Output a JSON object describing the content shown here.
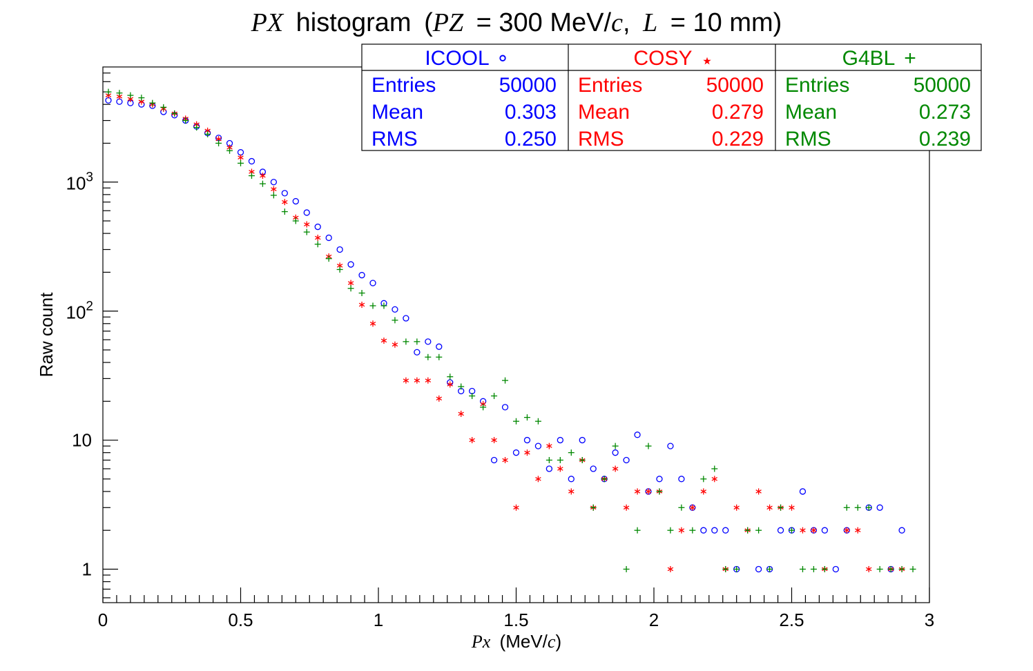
{
  "chart_data": {
    "type": "scatter",
    "title": {
      "var": "PX",
      "word": "histogram",
      "open": "(",
      "pz_var": "PZ",
      "pz_value": "= 300 MeV/",
      "c": "c",
      "comma": ",",
      "l_var": "L",
      "l_value": "= 10 mm)"
    },
    "xlabel": {
      "var": "Px",
      "unit_open": "(MeV/",
      "c": "c",
      "unit_close": ")"
    },
    "ylabel": "Raw count",
    "xlim": [
      0,
      3
    ],
    "ylim": [
      0.55,
      7800
    ],
    "y_scale": "log",
    "x_ticks": [
      {
        "v": 0,
        "label": "0"
      },
      {
        "v": 0.5,
        "label": "0.5"
      },
      {
        "v": 1,
        "label": "1"
      },
      {
        "v": 1.5,
        "label": "1.5"
      },
      {
        "v": 2,
        "label": "2"
      },
      {
        "v": 2.5,
        "label": "2.5"
      },
      {
        "v": 3,
        "label": "3"
      }
    ],
    "y_ticks": [
      {
        "v": 1,
        "label": "1"
      },
      {
        "v": 10,
        "label": "10"
      },
      {
        "v": 100,
        "base": "10",
        "exp": "2"
      },
      {
        "v": 1000,
        "base": "10",
        "exp": "3"
      }
    ],
    "series": [
      {
        "name": "ICOOL",
        "marker": "circle",
        "marker_glyph": "∘",
        "color": "#0000ff",
        "stats": {
          "entries": "50000",
          "mean": "0.303",
          "rms": "0.250"
        },
        "points": [
          [
            0.02,
            4300
          ],
          [
            0.06,
            4200
          ],
          [
            0.1,
            4100
          ],
          [
            0.14,
            4000
          ],
          [
            0.18,
            3900
          ],
          [
            0.22,
            3500
          ],
          [
            0.26,
            3300
          ],
          [
            0.3,
            3000
          ],
          [
            0.34,
            2700
          ],
          [
            0.38,
            2400
          ],
          [
            0.42,
            2200
          ],
          [
            0.46,
            2000
          ],
          [
            0.5,
            1700
          ],
          [
            0.54,
            1450
          ],
          [
            0.58,
            1200
          ],
          [
            0.62,
            1000
          ],
          [
            0.66,
            820
          ],
          [
            0.7,
            710
          ],
          [
            0.74,
            580
          ],
          [
            0.78,
            450
          ],
          [
            0.82,
            370
          ],
          [
            0.86,
            300
          ],
          [
            0.9,
            230
          ],
          [
            0.94,
            190
          ],
          [
            0.98,
            165
          ],
          [
            1.02,
            115
          ],
          [
            1.06,
            103
          ],
          [
            1.1,
            88
          ],
          [
            1.14,
            48
          ],
          [
            1.18,
            58
          ],
          [
            1.22,
            53
          ],
          [
            1.26,
            28
          ],
          [
            1.3,
            24
          ],
          [
            1.34,
            24
          ],
          [
            1.38,
            20
          ],
          [
            1.42,
            7
          ],
          [
            1.46,
            18
          ],
          [
            1.5,
            8
          ],
          [
            1.54,
            10
          ],
          [
            1.58,
            9
          ],
          [
            1.62,
            6
          ],
          [
            1.66,
            10
          ],
          [
            1.7,
            5
          ],
          [
            1.74,
            10
          ],
          [
            1.78,
            6
          ],
          [
            1.82,
            5
          ],
          [
            1.86,
            8
          ],
          [
            1.9,
            7
          ],
          [
            1.94,
            11
          ],
          [
            1.98,
            4
          ],
          [
            2.02,
            5
          ],
          [
            2.06,
            9
          ],
          [
            2.1,
            5
          ],
          [
            2.14,
            3
          ],
          [
            2.18,
            2
          ],
          [
            2.22,
            2
          ],
          [
            2.26,
            2
          ],
          [
            2.3,
            1
          ],
          [
            2.38,
            1
          ],
          [
            2.42,
            1
          ],
          [
            2.46,
            2
          ],
          [
            2.5,
            2
          ],
          [
            2.54,
            4
          ],
          [
            2.58,
            2
          ],
          [
            2.62,
            2
          ],
          [
            2.66,
            1
          ],
          [
            2.7,
            2
          ],
          [
            2.78,
            3
          ],
          [
            2.82,
            3
          ],
          [
            2.86,
            1
          ],
          [
            2.9,
            2
          ]
        ]
      },
      {
        "name": "COSY",
        "marker": "star",
        "marker_glyph": "⋆",
        "color": "#ff0000",
        "stats": {
          "entries": "50000",
          "mean": "0.279",
          "rms": "0.229"
        },
        "points": [
          [
            0.02,
            4700
          ],
          [
            0.06,
            4600
          ],
          [
            0.1,
            4400
          ],
          [
            0.14,
            4200
          ],
          [
            0.18,
            4000
          ],
          [
            0.22,
            3700
          ],
          [
            0.26,
            3400
          ],
          [
            0.3,
            3100
          ],
          [
            0.34,
            2800
          ],
          [
            0.38,
            2500
          ],
          [
            0.42,
            2150
          ],
          [
            0.46,
            1850
          ],
          [
            0.5,
            1550
          ],
          [
            0.54,
            1200
          ],
          [
            0.58,
            1120
          ],
          [
            0.62,
            880
          ],
          [
            0.66,
            700
          ],
          [
            0.7,
            530
          ],
          [
            0.74,
            470
          ],
          [
            0.78,
            370
          ],
          [
            0.82,
            265
          ],
          [
            0.86,
            225
          ],
          [
            0.9,
            165
          ],
          [
            0.94,
            112
          ],
          [
            0.98,
            80
          ],
          [
            1.02,
            59
          ],
          [
            1.06,
            55
          ],
          [
            1.1,
            29
          ],
          [
            1.14,
            29
          ],
          [
            1.18,
            29
          ],
          [
            1.22,
            21
          ],
          [
            1.26,
            27
          ],
          [
            1.3,
            16
          ],
          [
            1.34,
            10
          ],
          [
            1.38,
            19
          ],
          [
            1.42,
            10
          ],
          [
            1.46,
            7
          ],
          [
            1.5,
            3
          ],
          [
            1.54,
            8
          ],
          [
            1.58,
            5
          ],
          [
            1.62,
            9
          ],
          [
            1.66,
            6
          ],
          [
            1.7,
            4
          ],
          [
            1.74,
            7
          ],
          [
            1.78,
            3
          ],
          [
            1.82,
            5
          ],
          [
            1.86,
            6
          ],
          [
            1.9,
            3
          ],
          [
            1.94,
            4
          ],
          [
            1.98,
            4
          ],
          [
            2.02,
            4
          ],
          [
            2.06,
            1
          ],
          [
            2.1,
            2
          ],
          [
            2.14,
            3
          ],
          [
            2.18,
            4
          ],
          [
            2.22,
            5
          ],
          [
            2.26,
            1
          ],
          [
            2.3,
            3
          ],
          [
            2.34,
            2
          ],
          [
            2.38,
            4
          ],
          [
            2.42,
            3
          ],
          [
            2.46,
            3
          ],
          [
            2.5,
            3
          ],
          [
            2.54,
            2
          ],
          [
            2.58,
            2
          ],
          [
            2.62,
            1
          ],
          [
            2.7,
            2
          ],
          [
            2.74,
            2
          ],
          [
            2.78,
            1
          ],
          [
            2.86,
            1
          ],
          [
            2.9,
            1
          ]
        ]
      },
      {
        "name": "G4BL",
        "marker": "plus",
        "marker_glyph": "+",
        "color": "#008800",
        "stats": {
          "entries": "50000",
          "mean": "0.273",
          "rms": "0.239"
        },
        "points": [
          [
            0.02,
            5000
          ],
          [
            0.06,
            4900
          ],
          [
            0.1,
            4700
          ],
          [
            0.14,
            4500
          ],
          [
            0.18,
            4100
          ],
          [
            0.22,
            3800
          ],
          [
            0.26,
            3400
          ],
          [
            0.3,
            3000
          ],
          [
            0.34,
            2650
          ],
          [
            0.38,
            2350
          ],
          [
            0.42,
            2000
          ],
          [
            0.46,
            1750
          ],
          [
            0.5,
            1400
          ],
          [
            0.54,
            1120
          ],
          [
            0.58,
            970
          ],
          [
            0.62,
            790
          ],
          [
            0.66,
            590
          ],
          [
            0.7,
            500
          ],
          [
            0.74,
            410
          ],
          [
            0.78,
            330
          ],
          [
            0.82,
            255
          ],
          [
            0.86,
            210
          ],
          [
            0.9,
            150
          ],
          [
            0.94,
            138
          ],
          [
            0.98,
            110
          ],
          [
            1.02,
            110
          ],
          [
            1.06,
            85
          ],
          [
            1.1,
            58
          ],
          [
            1.14,
            58
          ],
          [
            1.18,
            44
          ],
          [
            1.22,
            44
          ],
          [
            1.26,
            31
          ],
          [
            1.3,
            26
          ],
          [
            1.34,
            22
          ],
          [
            1.38,
            18
          ],
          [
            1.42,
            22
          ],
          [
            1.46,
            29
          ],
          [
            1.5,
            14
          ],
          [
            1.54,
            15
          ],
          [
            1.58,
            14
          ],
          [
            1.62,
            7
          ],
          [
            1.66,
            7
          ],
          [
            1.7,
            8
          ],
          [
            1.74,
            7
          ],
          [
            1.78,
            3
          ],
          [
            1.82,
            5
          ],
          [
            1.86,
            9
          ],
          [
            1.9,
            1
          ],
          [
            1.94,
            2
          ],
          [
            1.98,
            9
          ],
          [
            2.02,
            4
          ],
          [
            2.06,
            2
          ],
          [
            2.1,
            3
          ],
          [
            2.14,
            2
          ],
          [
            2.18,
            5
          ],
          [
            2.22,
            6
          ],
          [
            2.26,
            1
          ],
          [
            2.3,
            1
          ],
          [
            2.34,
            2
          ],
          [
            2.38,
            2
          ],
          [
            2.42,
            1
          ],
          [
            2.46,
            3
          ],
          [
            2.5,
            2
          ],
          [
            2.54,
            1
          ],
          [
            2.58,
            1
          ],
          [
            2.62,
            1
          ],
          [
            2.7,
            3
          ],
          [
            2.74,
            3
          ],
          [
            2.78,
            3
          ],
          [
            2.82,
            1
          ],
          [
            2.86,
            1
          ],
          [
            2.9,
            1
          ],
          [
            2.94,
            1
          ]
        ]
      }
    ],
    "stats_labels": {
      "entries": "Entries",
      "mean": "Mean",
      "rms": "RMS"
    },
    "legend_placement": "top-right"
  }
}
